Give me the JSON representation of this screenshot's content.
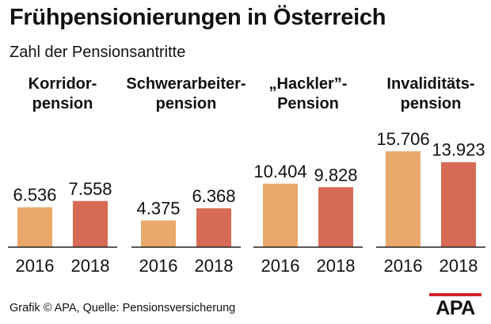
{
  "header": {
    "title": "Frühpensionierungen in Österreich",
    "subtitle": "Zahl der Pensionsantritte"
  },
  "footer": {
    "source": "Grafik © APA, Quelle: Pensionsversicherung",
    "logo_text": "APA"
  },
  "colors": {
    "bar_2016": "#e8a96a",
    "bar_2018": "#d66a55",
    "baseline": "#222222",
    "logo_accent": "#d6252c"
  },
  "chart_data": {
    "type": "bar",
    "title": "Frühpensionierungen in Österreich",
    "subtitle": "Zahl der Pensionsantritte",
    "categories": [
      "2016",
      "2018"
    ],
    "ylim": [
      0,
      15706
    ],
    "grid": false,
    "groups": [
      {
        "label_lines": [
          "Korridor-",
          "pension"
        ],
        "values": [
          6536,
          7558
        ],
        "value_labels": [
          "6.536",
          "7.558"
        ]
      },
      {
        "label_lines": [
          "Schwerarbeiter-",
          "pension"
        ],
        "values": [
          4375,
          6368
        ],
        "value_labels": [
          "4.375",
          "6.368"
        ]
      },
      {
        "label_lines": [
          "„Hackler”-",
          "Pension"
        ],
        "values": [
          10404,
          9828
        ],
        "value_labels": [
          "10.404",
          "9.828"
        ]
      },
      {
        "label_lines": [
          "Invaliditäts-",
          "pension"
        ],
        "values": [
          15706,
          13923
        ],
        "value_labels": [
          "15.706",
          "13.923"
        ]
      }
    ]
  }
}
